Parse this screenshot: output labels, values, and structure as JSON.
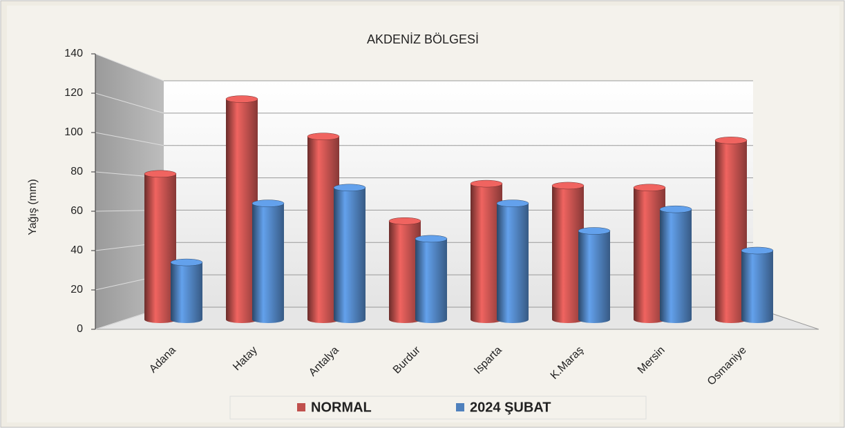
{
  "chart_data": {
    "type": "bar3d",
    "title": "AKDENİZ BÖLGESİ",
    "y_label": "Yağış (mm)",
    "categories": [
      "Adana",
      "Hatay",
      "Antalya",
      "Burdur",
      "Isparta",
      "K.Maraş",
      "Mersin",
      "Osmaniye"
    ],
    "series": [
      {
        "name": "NORMAL",
        "color": "#c0504d",
        "values": [
          79,
          117,
          98,
          55,
          74,
          73,
          72,
          96
        ]
      },
      {
        "name": "2024 ŞUBAT",
        "color": "#4f81bd",
        "values": [
          34,
          64,
          72,
          46,
          64,
          50,
          61,
          40
        ]
      }
    ],
    "ylim": [
      0,
      140
    ],
    "yticks": [
      0,
      20,
      40,
      60,
      80,
      100,
      120,
      140
    ],
    "grid": true,
    "legend": "bottom"
  }
}
